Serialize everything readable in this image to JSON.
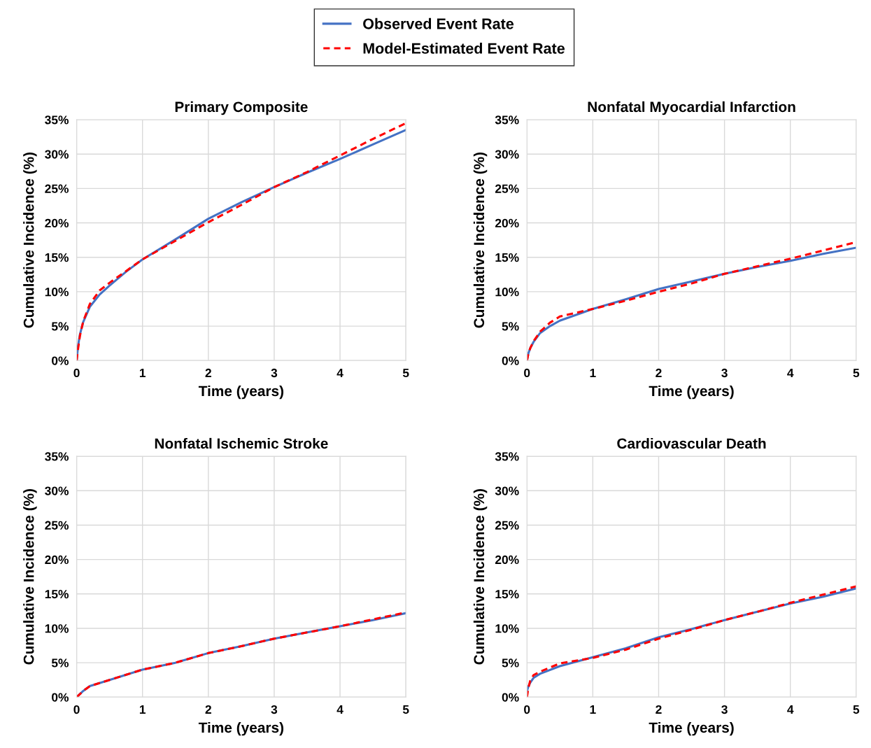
{
  "chart_data": [
    {
      "type": "line",
      "title": "Primary Composite",
      "xlabel": "Time (years)",
      "ylabel": "Cumulative Incidence (%)",
      "xlim": [
        0,
        5
      ],
      "ylim": [
        0,
        35
      ],
      "xticks": [
        0,
        1,
        2,
        3,
        4,
        5
      ],
      "yticks": [
        {
          "value": 0,
          "label": "0%"
        },
        {
          "value": 5,
          "label": "5%"
        },
        {
          "value": 10,
          "label": "10%"
        },
        {
          "value": 15,
          "label": "15%"
        },
        {
          "value": 20,
          "label": "20%"
        },
        {
          "value": 25,
          "label": "25%"
        },
        {
          "value": 30,
          "label": "30%"
        },
        {
          "value": 35,
          "label": "35%"
        }
      ],
      "grid": true,
      "legend": "top",
      "x": [
        0,
        0.02,
        0.05,
        0.1,
        0.2,
        0.35,
        0.5,
        0.75,
        1,
        1.5,
        2,
        2.5,
        3,
        3.5,
        4,
        4.5,
        5
      ],
      "series": [
        {
          "name": "Observed Event Rate",
          "color": "#4472c4",
          "line_style": "solid",
          "values": [
            0,
            2,
            3.8,
            5.6,
            7.8,
            9.6,
            10.9,
            12.9,
            14.7,
            17.6,
            20.6,
            23,
            25.2,
            27.3,
            29.3,
            31.4,
            33.5
          ]
        },
        {
          "name": "Model-Estimated Event Rate",
          "color": "#ff0000",
          "line_style": "dashed",
          "values": [
            0,
            1.6,
            3.6,
            5.7,
            8.2,
            10.2,
            11.3,
            13,
            14.7,
            17.4,
            20.1,
            22.6,
            25.2,
            27.4,
            29.8,
            32.2,
            34.5
          ]
        }
      ]
    },
    {
      "type": "line",
      "title": "Nonfatal Myocardial Infarction",
      "xlabel": "Time (years)",
      "ylabel": "Cumulative Incidence (%)",
      "xlim": [
        0,
        5
      ],
      "ylim": [
        0,
        35
      ],
      "xticks": [
        0,
        1,
        2,
        3,
        4,
        5
      ],
      "yticks": [
        {
          "value": 0,
          "label": "0%"
        },
        {
          "value": 5,
          "label": "5%"
        },
        {
          "value": 10,
          "label": "10%"
        },
        {
          "value": 15,
          "label": "15%"
        },
        {
          "value": 20,
          "label": "20%"
        },
        {
          "value": 25,
          "label": "25%"
        },
        {
          "value": 30,
          "label": "30%"
        },
        {
          "value": 35,
          "label": "35%"
        }
      ],
      "grid": true,
      "x": [
        0,
        0.02,
        0.05,
        0.1,
        0.2,
        0.35,
        0.5,
        1,
        1.5,
        2,
        2.5,
        3,
        3.5,
        4,
        4.5,
        5
      ],
      "series": [
        {
          "color": "#4472c4",
          "line_style": "solid",
          "values": [
            0,
            1,
            1.8,
            2.7,
            4,
            5,
            5.8,
            7.5,
            8.9,
            10.4,
            11.5,
            12.6,
            13.6,
            14.5,
            15.5,
            16.4
          ]
        },
        {
          "color": "#ff0000",
          "line_style": "dashed",
          "values": [
            0,
            0.9,
            1.8,
            2.8,
            4.2,
            5.5,
            6.4,
            7.5,
            8.7,
            10,
            11.2,
            12.6,
            13.7,
            14.8,
            16,
            17.2
          ]
        }
      ]
    },
    {
      "type": "line",
      "title": "Nonfatal Ischemic Stroke",
      "xlabel": "Time (years)",
      "ylabel": "Cumulative Incidence (%)",
      "xlim": [
        0,
        5
      ],
      "ylim": [
        0,
        35
      ],
      "xticks": [
        0,
        1,
        2,
        3,
        4,
        5
      ],
      "yticks": [
        {
          "value": 0,
          "label": "0%"
        },
        {
          "value": 5,
          "label": "5%"
        },
        {
          "value": 10,
          "label": "10%"
        },
        {
          "value": 15,
          "label": "15%"
        },
        {
          "value": 20,
          "label": "20%"
        },
        {
          "value": 25,
          "label": "25%"
        },
        {
          "value": 30,
          "label": "30%"
        },
        {
          "value": 35,
          "label": "35%"
        }
      ],
      "grid": true,
      "x": [
        0,
        0.1,
        0.2,
        0.5,
        1,
        1.5,
        2,
        2.5,
        3,
        3.5,
        4,
        4.5,
        5
      ],
      "series": [
        {
          "color": "#4472c4",
          "line_style": "solid",
          "values": [
            0,
            0.9,
            1.6,
            2.5,
            4,
            5,
            6.4,
            7.4,
            8.5,
            9.4,
            10.3,
            11.2,
            12.2
          ]
        },
        {
          "color": "#ff0000",
          "line_style": "dashed",
          "values": [
            0,
            0.9,
            1.6,
            2.5,
            4,
            5,
            6.4,
            7.4,
            8.5,
            9.4,
            10.3,
            11.3,
            12.3
          ]
        }
      ]
    },
    {
      "type": "line",
      "title": "Cardiovascular Death",
      "xlabel": "Time (years)",
      "ylabel": "Cumulative Incidence (%)",
      "xlim": [
        0,
        5
      ],
      "ylim": [
        0,
        35
      ],
      "xticks": [
        0,
        1,
        2,
        3,
        4,
        5
      ],
      "yticks": [
        {
          "value": 0,
          "label": "0%"
        },
        {
          "value": 5,
          "label": "5%"
        },
        {
          "value": 10,
          "label": "10%"
        },
        {
          "value": 15,
          "label": "15%"
        },
        {
          "value": 20,
          "label": "20%"
        },
        {
          "value": 25,
          "label": "25%"
        },
        {
          "value": 30,
          "label": "30%"
        },
        {
          "value": 35,
          "label": "35%"
        }
      ],
      "grid": true,
      "x": [
        0,
        0.02,
        0.05,
        0.1,
        0.2,
        0.5,
        1,
        1.5,
        2,
        2.5,
        3,
        3.5,
        4,
        4.5,
        5
      ],
      "series": [
        {
          "color": "#4472c4",
          "line_style": "solid",
          "values": [
            0.9,
            1.5,
            2.1,
            2.8,
            3.4,
            4.5,
            5.8,
            7.1,
            8.7,
            9.9,
            11.2,
            12.4,
            13.6,
            14.6,
            15.8
          ]
        },
        {
          "color": "#ff0000",
          "line_style": "dashed",
          "values": [
            0,
            1.3,
            2.4,
            3.2,
            3.7,
            4.9,
            5.7,
            6.9,
            8.5,
            9.8,
            11.2,
            12.4,
            13.7,
            14.9,
            16.1
          ]
        }
      ]
    }
  ]
}
